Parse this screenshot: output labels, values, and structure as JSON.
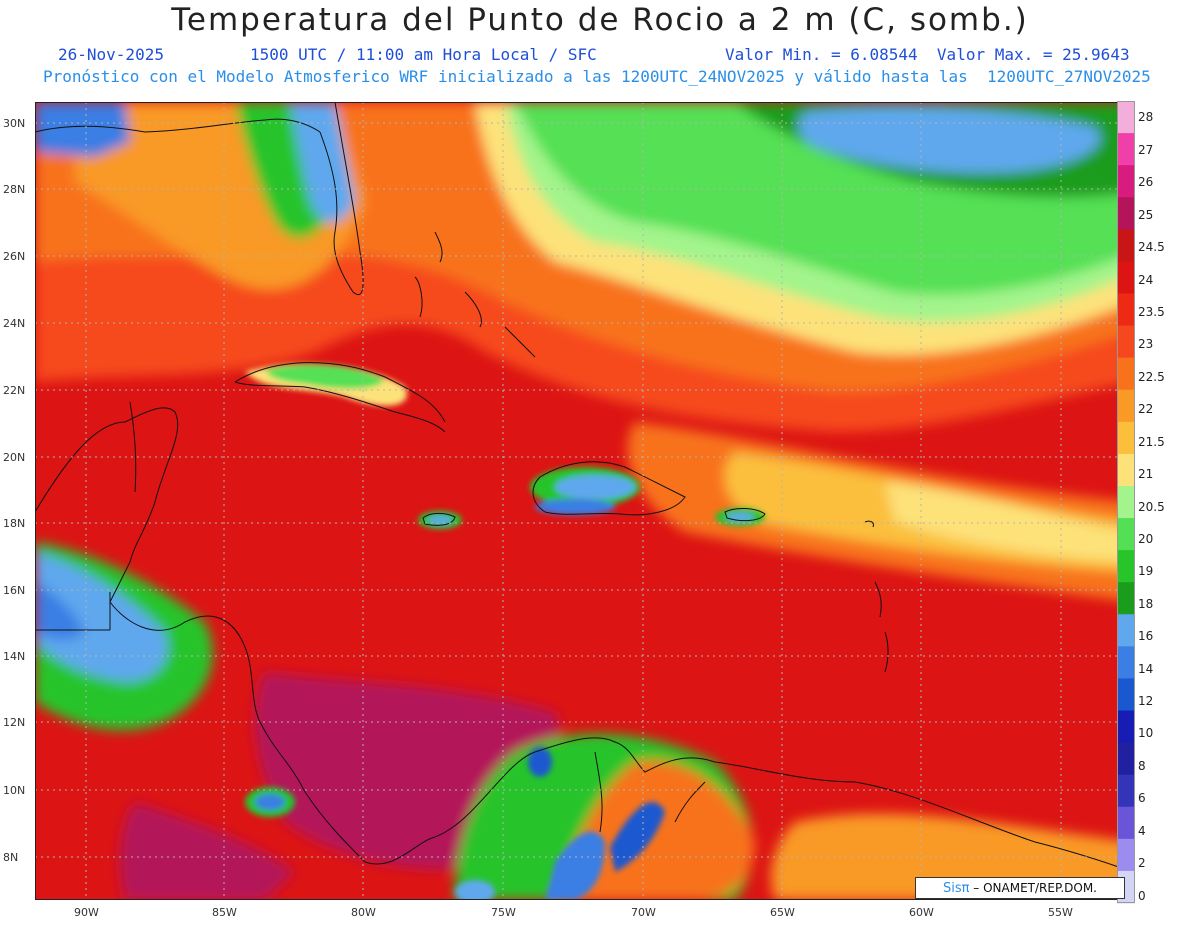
{
  "header": {
    "title": "Temperatura del Punto de Rocio a 2 m (C, somb.)",
    "date": "26-Nov-2025",
    "time": "1500 UTC / 11:00 am Hora Local / SFC",
    "min_max": "Valor Min. = 6.08544  Valor Max. = 25.9643",
    "model_line": "Pronóstico con el Modelo Atmosferico WRF inicializado a las 1200UTC_24NOV2025 y válido hasta las  1200UTC_27NOV2025"
  },
  "map": {
    "lat_labels": [
      "30N",
      "28N",
      "26N",
      "24N",
      "22N",
      "20N",
      "18N",
      "16N",
      "14N",
      "12N",
      "10N",
      "8N"
    ],
    "lon_labels": [
      "90W",
      "85W",
      "80W",
      "75W",
      "70W",
      "65W",
      "60W",
      "55W"
    ],
    "lat_values": [
      30,
      28,
      26,
      24,
      22,
      20,
      18,
      16,
      14,
      12,
      10,
      8
    ],
    "lon_values": [
      -90,
      -85,
      -80,
      -75,
      -70,
      -65,
      -60,
      -55
    ],
    "lat_range": [
      6.75,
      31.0
    ],
    "lon_range": [
      -91.8,
      -52.6
    ]
  },
  "colorbar": {
    "labels": [
      "28",
      "27",
      "26",
      "25",
      "24.5",
      "24",
      "23.5",
      "23",
      "22.5",
      "22",
      "21.5",
      "21",
      "20.5",
      "20",
      "19",
      "18",
      "16",
      "14",
      "12",
      "10",
      "8",
      "6",
      "4",
      "2",
      "0"
    ],
    "colors": [
      "#f4aedc",
      "#ef3fa8",
      "#d81b7e",
      "#b4145a",
      "#c81616",
      "#dc1414",
      "#ef2a14",
      "#f6481e",
      "#f8721c",
      "#f99926",
      "#fbbf3c",
      "#fde27a",
      "#a3f48c",
      "#54e054",
      "#27c42a",
      "#1a9c1c",
      "#5fa8ee",
      "#3b7ee4",
      "#1a58d0",
      "#161cb4",
      "#2020a0",
      "#3434b8",
      "#6a54d8",
      "#9c8cf0",
      "#d4d4f6"
    ]
  },
  "credit": {
    "brand": "Sisπ",
    "text": " – ONAMET/REP.DOM."
  }
}
